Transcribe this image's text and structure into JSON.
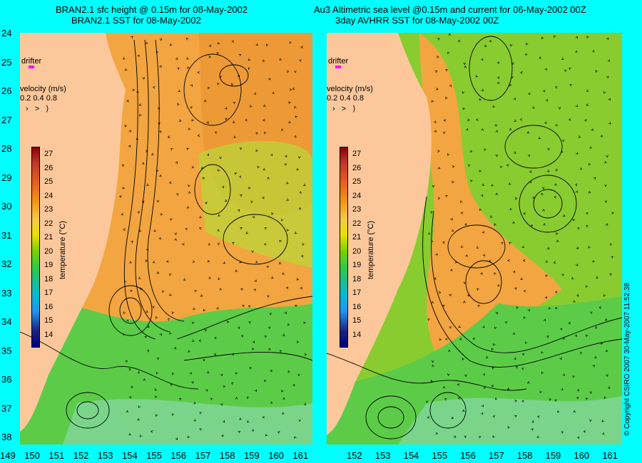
{
  "titles": {
    "left_line1": "BRAN2.1 sfc height @ 0.15m for 08-May-2002",
    "left_line2": "BRAN2.1 SST for 08-May-2002",
    "right_line1": "Au3 Altimetric sea level  @0.15m and current for 06-May-2002 00Z",
    "right_line2": "3day AVHRR SST for 08-May-2002 00Z"
  },
  "y_axis_labels": [
    "24",
    "25",
    "26",
    "27",
    "28",
    "29",
    "30",
    "31",
    "32",
    "33",
    "34",
    "35",
    "36",
    "37",
    "38"
  ],
  "x_axis_labels": [
    "149",
    "150",
    "151",
    "152",
    "153",
    "154",
    "155",
    "156",
    "157",
    "158",
    "159",
    "160",
    "161"
  ],
  "x_axis_right_labels": [
    "152",
    "153",
    "154",
    "155",
    "156",
    "157",
    "158",
    "159",
    "160",
    "161"
  ],
  "drifter": {
    "label": "drifter",
    "marker_color": "#ff00ff"
  },
  "velocity": {
    "title": "velocity (m/s)",
    "values": "0.2 0.4 0.8",
    "arrows": "› > ⟩"
  },
  "colorbar": {
    "ticks": [
      "27",
      "26",
      "25",
      "24",
      "23",
      "22",
      "21",
      "20",
      "19",
      "18",
      "17",
      "16",
      "15",
      "14"
    ],
    "title": "temperature (°C)"
  },
  "copyright": "© Copyright CSIRO 2007    30-May-2007 11:52:38",
  "colors": {
    "background": "#00ffff",
    "land": "#fcc89b",
    "warm_water": "#f2a23a",
    "cool_water": "#57c840",
    "cold_water": "#3cb371"
  }
}
